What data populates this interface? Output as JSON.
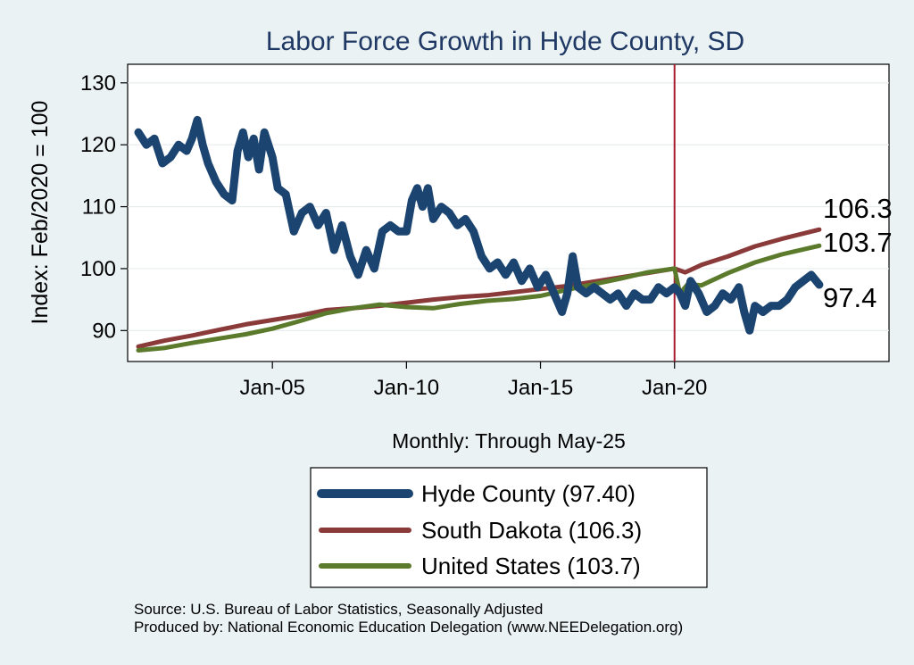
{
  "chart_data": {
    "type": "line",
    "title": "Labor Force Growth in Hyde  County, SD",
    "xlabel": "Monthly: Through May-25",
    "ylabel": "Index: Feb/2020 = 100",
    "ylim": [
      85,
      133
    ],
    "yticks": [
      90,
      100,
      110,
      120,
      130
    ],
    "xlim": [
      1999.6,
      2028.0
    ],
    "xticks": [
      {
        "x": 2005.0,
        "label": "Jan-05"
      },
      {
        "x": 2010.0,
        "label": "Jan-10"
      },
      {
        "x": 2015.0,
        "label": "Jan-15"
      },
      {
        "x": 2020.0,
        "label": "Jan-20"
      }
    ],
    "grid": true,
    "reference_line": {
      "x": 2020.0,
      "color": "#a51c30"
    },
    "series": [
      {
        "name": "Hyde  County",
        "legend": "Hyde  County (97.40)",
        "end_label": "97.4",
        "color": "#1b4470",
        "width": 9,
        "points": [
          [
            2000.0,
            122
          ],
          [
            2000.3,
            120
          ],
          [
            2000.6,
            121
          ],
          [
            2000.9,
            117
          ],
          [
            2001.2,
            118
          ],
          [
            2001.5,
            120
          ],
          [
            2001.8,
            119
          ],
          [
            2002.0,
            121
          ],
          [
            2002.2,
            124
          ],
          [
            2002.4,
            120
          ],
          [
            2002.6,
            117
          ],
          [
            2002.9,
            114
          ],
          [
            2003.2,
            112
          ],
          [
            2003.5,
            111
          ],
          [
            2003.7,
            119
          ],
          [
            2003.9,
            122
          ],
          [
            2004.1,
            118
          ],
          [
            2004.3,
            121
          ],
          [
            2004.5,
            116
          ],
          [
            2004.7,
            122
          ],
          [
            2005.0,
            118
          ],
          [
            2005.2,
            113
          ],
          [
            2005.5,
            112
          ],
          [
            2005.8,
            106
          ],
          [
            2006.1,
            109
          ],
          [
            2006.4,
            110
          ],
          [
            2006.7,
            107
          ],
          [
            2007.0,
            109
          ],
          [
            2007.3,
            103
          ],
          [
            2007.6,
            107
          ],
          [
            2007.9,
            102
          ],
          [
            2008.2,
            99
          ],
          [
            2008.5,
            103
          ],
          [
            2008.8,
            100
          ],
          [
            2009.1,
            106
          ],
          [
            2009.4,
            107
          ],
          [
            2009.7,
            106
          ],
          [
            2010.0,
            106
          ],
          [
            2010.2,
            111
          ],
          [
            2010.4,
            113
          ],
          [
            2010.6,
            110
          ],
          [
            2010.8,
            113
          ],
          [
            2011.0,
            108
          ],
          [
            2011.3,
            110
          ],
          [
            2011.6,
            109
          ],
          [
            2011.9,
            107
          ],
          [
            2012.2,
            108
          ],
          [
            2012.5,
            106
          ],
          [
            2012.8,
            102
          ],
          [
            2013.1,
            100
          ],
          [
            2013.4,
            101
          ],
          [
            2013.7,
            99
          ],
          [
            2014.0,
            101
          ],
          [
            2014.3,
            98
          ],
          [
            2014.6,
            100
          ],
          [
            2014.9,
            97
          ],
          [
            2015.2,
            99
          ],
          [
            2015.5,
            96
          ],
          [
            2015.8,
            93
          ],
          [
            2016.0,
            96
          ],
          [
            2016.2,
            102
          ],
          [
            2016.4,
            97
          ],
          [
            2016.7,
            96
          ],
          [
            2017.0,
            97
          ],
          [
            2017.3,
            96
          ],
          [
            2017.6,
            95
          ],
          [
            2017.9,
            96
          ],
          [
            2018.2,
            94
          ],
          [
            2018.5,
            96
          ],
          [
            2018.8,
            95
          ],
          [
            2019.1,
            95
          ],
          [
            2019.4,
            97
          ],
          [
            2019.7,
            96
          ],
          [
            2020.0,
            97
          ],
          [
            2020.2,
            96
          ],
          [
            2020.4,
            94
          ],
          [
            2020.6,
            98
          ],
          [
            2020.9,
            96
          ],
          [
            2021.2,
            93
          ],
          [
            2021.5,
            94
          ],
          [
            2021.8,
            96
          ],
          [
            2022.1,
            95
          ],
          [
            2022.4,
            97
          ],
          [
            2022.6,
            93
          ],
          [
            2022.8,
            90
          ],
          [
            2023.0,
            94
          ],
          [
            2023.3,
            93
          ],
          [
            2023.6,
            94
          ],
          [
            2023.9,
            94
          ],
          [
            2024.2,
            95
          ],
          [
            2024.5,
            97
          ],
          [
            2024.8,
            98
          ],
          [
            2025.1,
            99
          ],
          [
            2025.4,
            97.4
          ]
        ]
      },
      {
        "name": "South Dakota",
        "legend": "South Dakota (106.3)",
        "end_label": "106.3",
        "color": "#8b3a3a",
        "width": 5,
        "points": [
          [
            2000.0,
            87.4
          ],
          [
            2001.0,
            88.4
          ],
          [
            2002.0,
            89.2
          ],
          [
            2003.0,
            90.1
          ],
          [
            2004.0,
            91.0
          ],
          [
            2005.0,
            91.7
          ],
          [
            2006.0,
            92.4
          ],
          [
            2007.0,
            93.3
          ],
          [
            2008.0,
            93.6
          ],
          [
            2009.0,
            94.0
          ],
          [
            2010.0,
            94.5
          ],
          [
            2011.0,
            95.0
          ],
          [
            2012.0,
            95.4
          ],
          [
            2013.0,
            95.7
          ],
          [
            2014.0,
            96.2
          ],
          [
            2015.0,
            96.7
          ],
          [
            2016.0,
            97.2
          ],
          [
            2017.0,
            97.9
          ],
          [
            2018.0,
            98.6
          ],
          [
            2019.0,
            99.3
          ],
          [
            2020.0,
            100.0
          ],
          [
            2020.4,
            99.4
          ],
          [
            2021.0,
            100.6
          ],
          [
            2022.0,
            102.0
          ],
          [
            2023.0,
            103.6
          ],
          [
            2024.0,
            104.8
          ],
          [
            2025.4,
            106.3
          ]
        ]
      },
      {
        "name": "United States",
        "legend": "United States (103.7)",
        "end_label": "103.7",
        "color": "#5b7a2c",
        "width": 5,
        "points": [
          [
            2000.0,
            86.8
          ],
          [
            2001.0,
            87.2
          ],
          [
            2002.0,
            88.0
          ],
          [
            2003.0,
            88.7
          ],
          [
            2004.0,
            89.4
          ],
          [
            2005.0,
            90.3
          ],
          [
            2006.0,
            91.5
          ],
          [
            2007.0,
            92.8
          ],
          [
            2008.0,
            93.6
          ],
          [
            2009.0,
            94.2
          ],
          [
            2010.0,
            93.8
          ],
          [
            2011.0,
            93.6
          ],
          [
            2012.0,
            94.3
          ],
          [
            2013.0,
            94.8
          ],
          [
            2014.0,
            95.1
          ],
          [
            2015.0,
            95.6
          ],
          [
            2016.0,
            96.6
          ],
          [
            2017.0,
            97.5
          ],
          [
            2018.0,
            98.4
          ],
          [
            2019.0,
            99.4
          ],
          [
            2020.0,
            100.0
          ],
          [
            2020.2,
            96.0
          ],
          [
            2020.5,
            97.5
          ],
          [
            2021.0,
            97.3
          ],
          [
            2022.0,
            99.3
          ],
          [
            2023.0,
            101.0
          ],
          [
            2024.0,
            102.3
          ],
          [
            2025.4,
            103.7
          ]
        ]
      }
    ]
  },
  "footer": {
    "source": "Source: U.S. Bureau of Labor Statistics, Seasonally Adjusted",
    "producer": "Produced by: National Economic Education Delegation (www.NEEDelegation.org)"
  }
}
